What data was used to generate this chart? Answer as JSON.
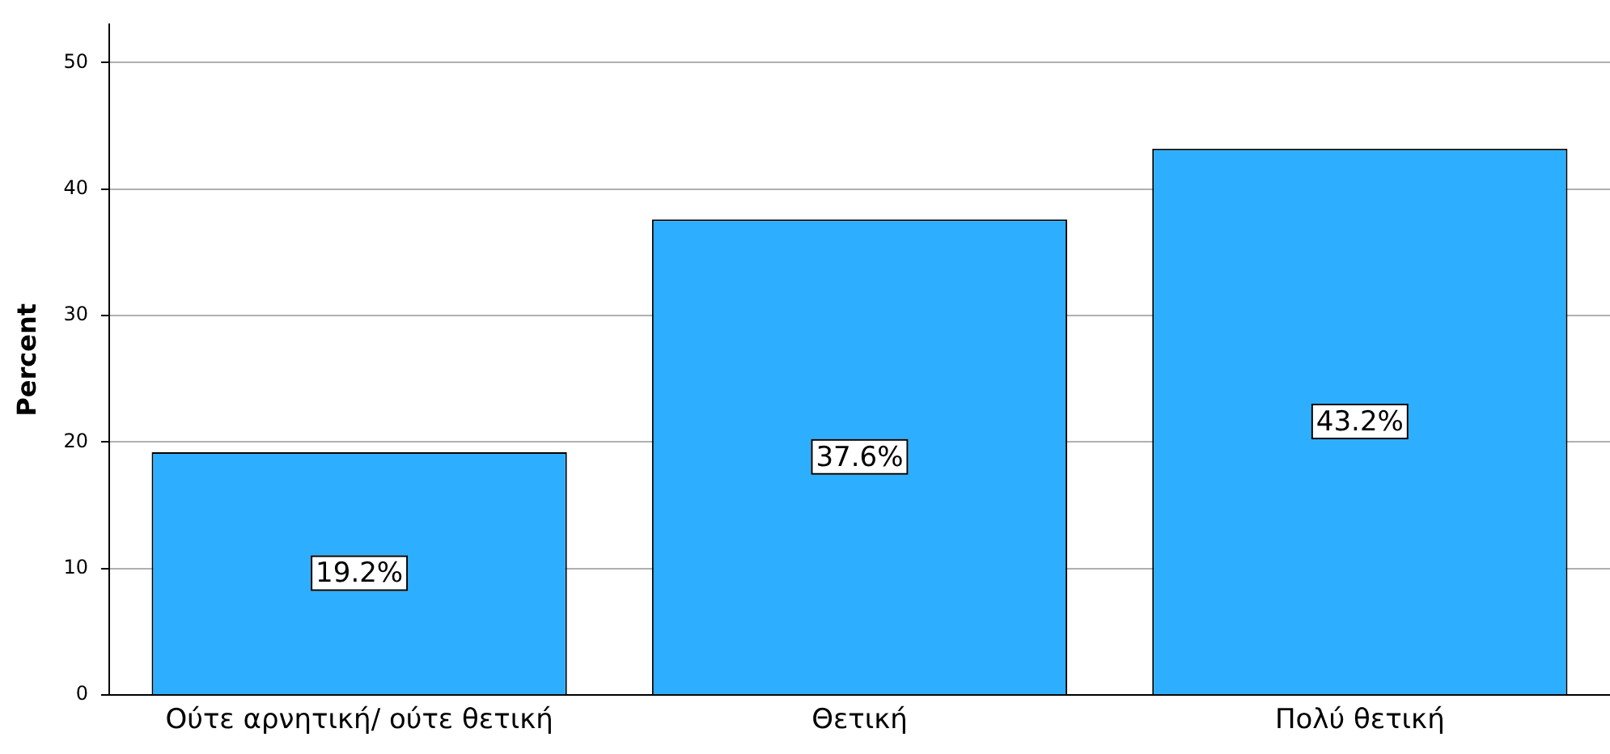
{
  "chart_data": {
    "type": "bar",
    "ylabel": "Percent",
    "categories": [
      "Ούτε αρνητική/ ούτε θετική",
      "Θετική",
      "Πολύ θετική"
    ],
    "values": [
      19.2,
      37.6,
      43.2
    ],
    "color": "#2eaefe",
    "value_labels": [
      "19.2%",
      "37.6%",
      "43.2%"
    ],
    "ylim": [
      0,
      53
    ],
    "yticks": [
      0,
      10,
      20,
      30,
      40,
      50
    ],
    "grid": "y",
    "legend": false
  }
}
